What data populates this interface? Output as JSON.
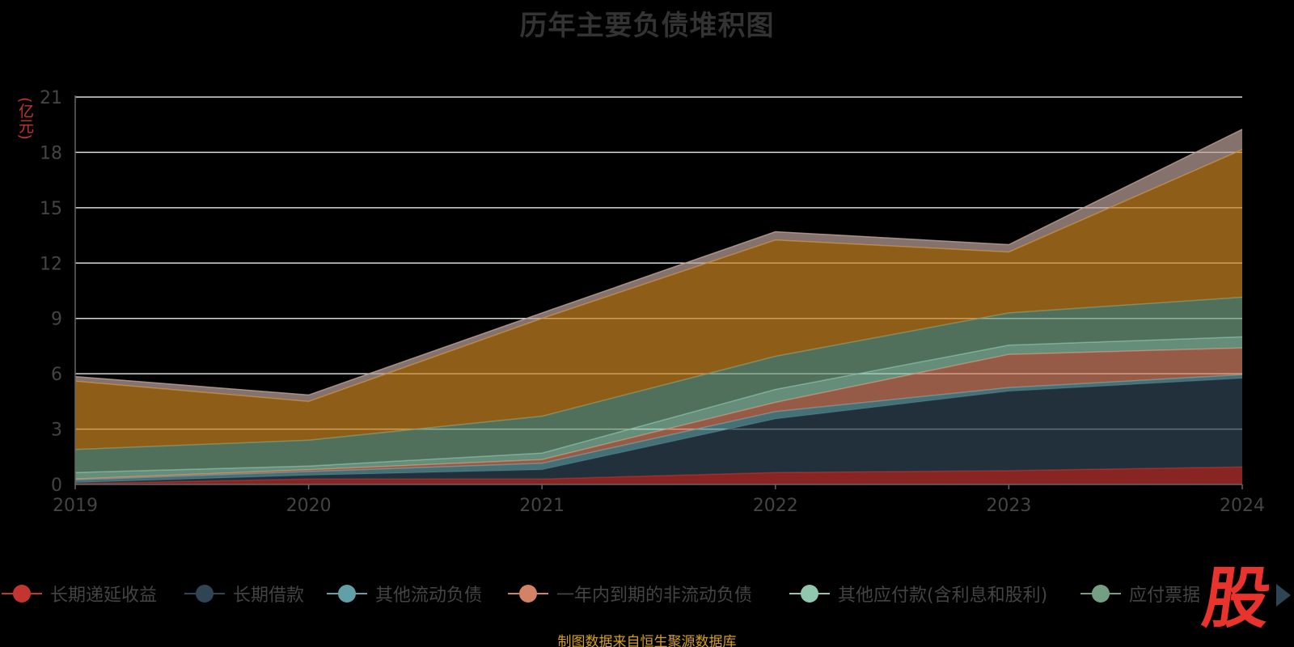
{
  "chart_data": {
    "type": "area",
    "title": "历年主要负债堆积图",
    "ylabel": "(亿元)",
    "xlabel": "",
    "ylim": [
      0,
      21
    ],
    "y_ticks": [
      0,
      3,
      6,
      9,
      12,
      15,
      18,
      21
    ],
    "x": [
      "2019",
      "2020",
      "2021",
      "2022",
      "2023",
      "2024"
    ],
    "stacked": true,
    "grid": true,
    "legend_position": "bottom",
    "series": [
      {
        "name": "长期递延收益",
        "color": "#c23531",
        "values": [
          0.05,
          0.3,
          0.3,
          0.65,
          0.75,
          0.95
        ]
      },
      {
        "name": "长期借款",
        "color": "#2f4554",
        "values": [
          0.05,
          0.2,
          0.5,
          2.9,
          4.3,
          4.8
        ]
      },
      {
        "name": "其他流动负债",
        "color": "#61a0a8",
        "values": [
          0.15,
          0.2,
          0.35,
          0.4,
          0.2,
          0.2
        ]
      },
      {
        "name": "一年内到期的非流动负债",
        "color": "#d48265",
        "values": [
          0.05,
          0.1,
          0.2,
          0.5,
          1.8,
          1.45
        ]
      },
      {
        "name": "其他应付款(含利息和股利)",
        "color": "#91c7ae",
        "values": [
          0.35,
          0.2,
          0.35,
          0.7,
          0.5,
          0.6
        ]
      },
      {
        "name": "应付票据",
        "color": "#749f83",
        "values": [
          1.25,
          1.4,
          2.0,
          1.8,
          1.75,
          2.15
        ]
      },
      {
        "name": "",
        "color": "#ca8622",
        "values": [
          3.7,
          2.1,
          5.3,
          6.3,
          3.3,
          8.0
        ]
      },
      {
        "name": "",
        "color": "#bda29a",
        "values": [
          0.25,
          0.35,
          0.3,
          0.45,
          0.4,
          1.1
        ]
      }
    ]
  },
  "legend": {
    "items": [
      {
        "label": "长期递延收益",
        "color": "#c23531"
      },
      {
        "label": "长期借款",
        "color": "#2f4554"
      },
      {
        "label": "其他流动负债",
        "color": "#61a0a8"
      },
      {
        "label": "一年内到期的非流动负债",
        "color": "#d48265"
      },
      {
        "label": "其他应付款(含利息和股利)",
        "color": "#91c7ae"
      },
      {
        "label": "应付票据",
        "color": "#749f83"
      }
    ]
  },
  "logo": {
    "text": "股"
  },
  "source_note": "制图数据来自恒生聚源数据库"
}
